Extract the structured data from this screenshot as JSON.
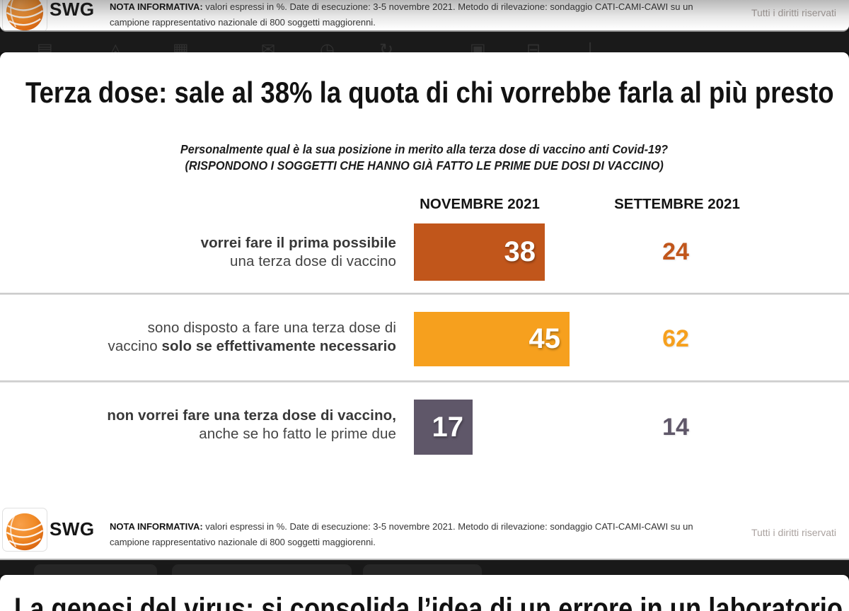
{
  "footer": {
    "logo_text": "SWG",
    "note_bold": "NOTA INFORMATIVA:",
    "note_line1": " valori espressi in %. Date di esecuzione: 3-5 novembre 2021. Metodo di rilevazione: sondaggio CATI-CAMI-CAWI su un",
    "note_line2": "campione rappresentativo nazionale di 800 soggetti maggiorenni.",
    "rights": "Tutti i diritti riservati"
  },
  "slide": {
    "title": "Terza dose: sale al 38% la quota di chi vorrebbe farla al più presto",
    "question_line1": "Personalmente qual è la sua posizione in merito alla terza dose di vaccino anti Covid-19?",
    "question_line2": "(RISPONDONO I SOGGETTI CHE HANNO GIÀ FATTO LE PRIME DUE DOSI DI VACCINO)"
  },
  "chart_data": {
    "type": "bar",
    "title": "Terza dose: sale al 38% la quota di chi vorrebbe farla al più presto",
    "question": "Personalmente qual è la sua posizione in merito alla terza dose di vaccino anti Covid-19? (RISPONDONO I SOGGETTI CHE HANNO GIÀ FATTO LE PRIME DUE DOSI DI VACCINO)",
    "unit": "%",
    "xlim": [
      0,
      100
    ],
    "columns": [
      "NOVEMBRE 2021",
      "SETTEMBRE 2021"
    ],
    "categories": [
      "vorrei fare il prima possibile una terza dose di vaccino",
      "sono disposto a fare una terza dose di vaccino solo se effettivamente necessario",
      "non vorrei fare una terza dose di vaccino, anche se ho fatto le prime due"
    ],
    "series": [
      {
        "name": "NOVEMBRE 2021",
        "values": [
          38,
          45,
          17
        ]
      },
      {
        "name": "SETTEMBRE 2021",
        "values": [
          24,
          62,
          14
        ]
      }
    ],
    "rows": [
      {
        "l1_norm": "",
        "l1_bold": "vorrei fare il prima possibile",
        "l2_norm": "una terza dose di vaccino",
        "l2_bold": "",
        "novembre": "38",
        "settembre": "24",
        "color": "#c1561b"
      },
      {
        "l1_norm": "sono disposto a fare una terza dose di",
        "l1_bold": "",
        "l2_norm": "vaccino ",
        "l2_bold": "solo se effettivamente necessario",
        "novembre": "45",
        "settembre": "62",
        "color": "#f6a01e"
      },
      {
        "l1_norm": "",
        "l1_bold": "non vorrei fare una terza dose di vaccino,",
        "l2_norm": "anche se ho fatto le prime due",
        "l2_bold": "",
        "novembre": "17",
        "settembre": "14",
        "color": "#5f5769"
      }
    ]
  },
  "next_slide": {
    "title": "La genesi del virus: si consolida l’idea di un errore in un laboratorio"
  },
  "viewer_toolbar": {
    "icons": [
      "save-icon",
      "upload-icon",
      "trash-icon",
      "mail-icon",
      "clock-icon",
      "redo-icon",
      "frame-icon",
      "print-icon",
      "cursor-icon"
    ]
  }
}
